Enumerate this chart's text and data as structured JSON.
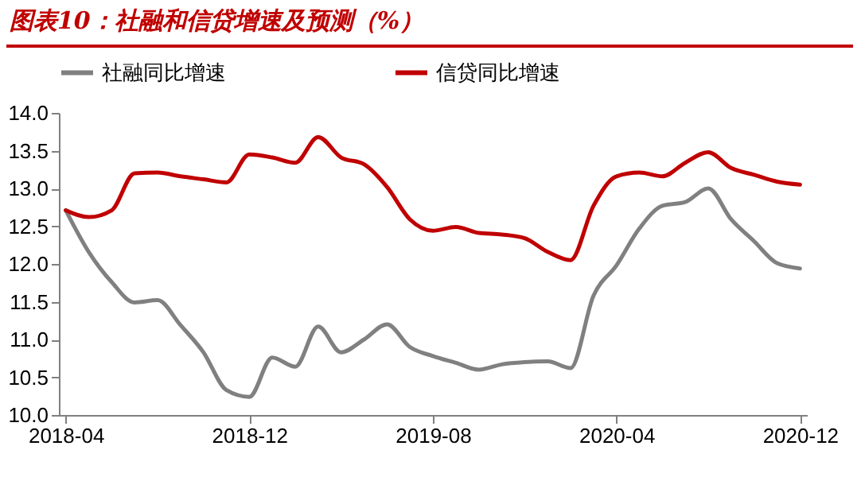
{
  "chart_data": {
    "type": "line",
    "title": "图表10：社融和信贷增速及预测（%）",
    "categories": [
      "2018-04",
      null,
      null,
      null,
      null,
      null,
      null,
      null,
      "2018-12",
      null,
      null,
      null,
      null,
      null,
      null,
      null,
      "2019-08",
      null,
      null,
      null,
      null,
      null,
      null,
      null,
      "2020-04",
      null,
      null,
      null,
      null,
      null,
      null,
      null,
      "2020-12"
    ],
    "series": [
      {
        "name": "社融同比增速",
        "color": "#808080",
        "values": [
          12.71,
          12.16,
          11.76,
          11.49,
          11.52,
          11.19,
          10.83,
          10.33,
          10.24,
          10.76,
          10.64,
          11.17,
          10.83,
          11.0,
          11.2,
          10.9,
          10.78,
          10.69,
          10.6,
          10.67,
          10.7,
          10.71,
          10.62,
          11.58,
          11.98,
          12.47,
          12.77,
          12.82,
          13.0,
          12.59,
          12.3,
          12.01,
          11.94
        ]
      },
      {
        "name": "信贷同比增速",
        "color": "#c00000",
        "values": [
          12.71,
          12.62,
          12.71,
          13.2,
          13.21,
          13.16,
          13.12,
          13.08,
          13.45,
          13.41,
          13.34,
          13.68,
          13.41,
          13.32,
          13.02,
          12.59,
          12.44,
          12.49,
          12.41,
          12.39,
          12.34,
          12.16,
          12.05,
          12.77,
          13.16,
          13.21,
          13.16,
          13.34,
          13.48,
          13.27,
          13.18,
          13.09,
          13.05
        ]
      }
    ],
    "ylim": [
      10.0,
      14.0
    ],
    "yticks": [
      {
        "value": 10,
        "label": "10.0"
      },
      {
        "value": 10.5,
        "label": "10.5"
      },
      {
        "value": 11,
        "label": "11.0"
      },
      {
        "value": 11.5,
        "label": "11.5"
      },
      {
        "value": 12,
        "label": "12.0"
      },
      {
        "value": 12.5,
        "label": "12.5"
      },
      {
        "value": 13,
        "label": "13.0"
      },
      {
        "value": 13.5,
        "label": "13.5"
      },
      {
        "value": 14,
        "label": "14.0"
      }
    ],
    "grid": false,
    "legend": "top",
    "marker": "none",
    "line_style": "solid"
  }
}
